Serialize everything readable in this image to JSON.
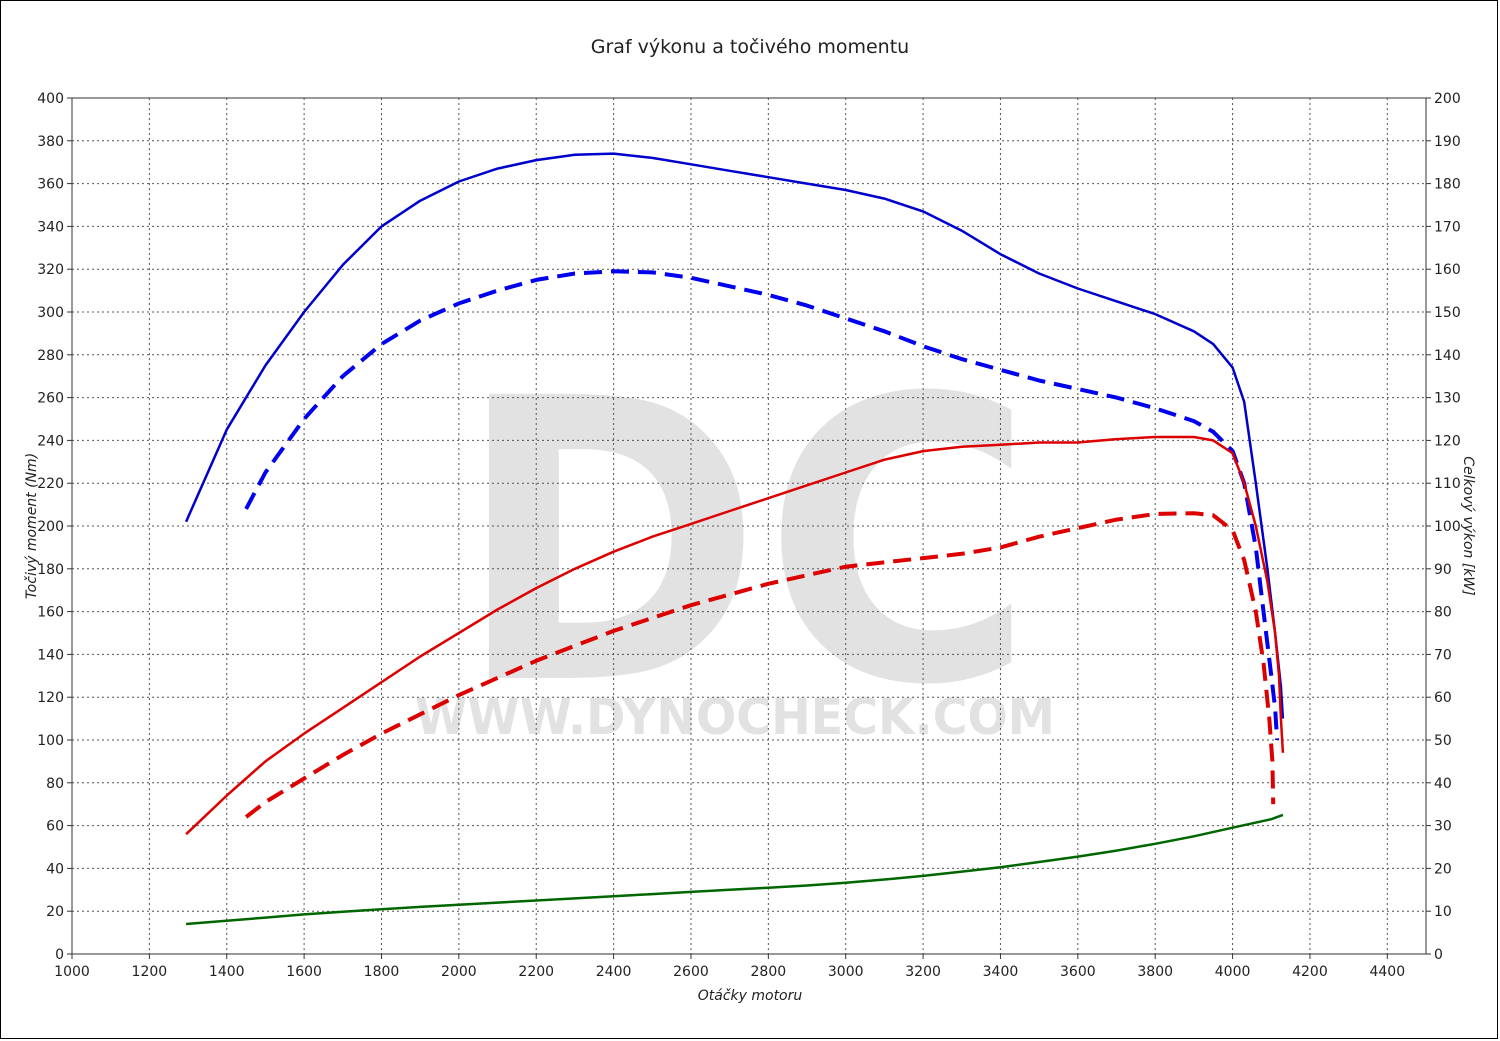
{
  "chart_data": {
    "type": "line",
    "title": "Graf výkonu a točivého momentu",
    "xlabel": "Otáčky motoru",
    "ylabel_left": "Točivý moment (Nm)",
    "ylabel_right": "Celkový výkon [kW]",
    "watermark": {
      "letters": "DC",
      "url": "WWW.DYNOCHECK.COM"
    },
    "xlim": [
      1000,
      4500
    ],
    "ylim_left": [
      0,
      400
    ],
    "ylim_right": [
      0,
      200
    ],
    "x_ticks": [
      1000,
      1200,
      1400,
      1600,
      1800,
      2000,
      2200,
      2400,
      2600,
      2800,
      3000,
      3200,
      3400,
      3600,
      3800,
      4000,
      4200,
      4400
    ],
    "y_left_ticks": [
      0,
      20,
      40,
      60,
      80,
      100,
      120,
      140,
      160,
      180,
      200,
      220,
      240,
      260,
      280,
      300,
      320,
      340,
      360,
      380,
      400
    ],
    "y_right_ticks": [
      0,
      10,
      20,
      30,
      40,
      50,
      60,
      70,
      80,
      90,
      100,
      110,
      120,
      130,
      140,
      150,
      160,
      170,
      180,
      190,
      200
    ],
    "grid": true,
    "series": [
      {
        "axis": "left",
        "color": "#0000cc",
        "dashed": false,
        "points": [
          [
            1295,
            202
          ],
          [
            1400,
            245
          ],
          [
            1500,
            275
          ],
          [
            1600,
            300
          ],
          [
            1700,
            322
          ],
          [
            1800,
            340
          ],
          [
            1900,
            352
          ],
          [
            2000,
            361
          ],
          [
            2100,
            367
          ],
          [
            2200,
            371
          ],
          [
            2300,
            373.5
          ],
          [
            2400,
            374
          ],
          [
            2500,
            372
          ],
          [
            2600,
            369
          ],
          [
            2700,
            366
          ],
          [
            2800,
            363
          ],
          [
            2900,
            360
          ],
          [
            3000,
            357
          ],
          [
            3100,
            353
          ],
          [
            3200,
            347
          ],
          [
            3300,
            338
          ],
          [
            3400,
            327
          ],
          [
            3500,
            318
          ],
          [
            3600,
            311
          ],
          [
            3700,
            305
          ],
          [
            3800,
            299
          ],
          [
            3900,
            291
          ],
          [
            3950,
            285
          ],
          [
            4000,
            274
          ],
          [
            4030,
            258
          ],
          [
            4060,
            220
          ],
          [
            4090,
            180
          ],
          [
            4110,
            150
          ],
          [
            4125,
            125
          ],
          [
            4130,
            110
          ]
        ]
      },
      {
        "axis": "left",
        "color": "#0000ee",
        "dashed": true,
        "points": [
          [
            1450,
            208
          ],
          [
            1500,
            225
          ],
          [
            1600,
            250
          ],
          [
            1700,
            270
          ],
          [
            1800,
            285
          ],
          [
            1900,
            296
          ],
          [
            2000,
            304
          ],
          [
            2100,
            310
          ],
          [
            2200,
            315
          ],
          [
            2300,
            318
          ],
          [
            2400,
            319
          ],
          [
            2500,
            318.5
          ],
          [
            2600,
            316
          ],
          [
            2700,
            312
          ],
          [
            2800,
            308
          ],
          [
            2900,
            303
          ],
          [
            3000,
            297
          ],
          [
            3100,
            291
          ],
          [
            3200,
            284
          ],
          [
            3300,
            278
          ],
          [
            3400,
            273
          ],
          [
            3500,
            268
          ],
          [
            3600,
            264
          ],
          [
            3700,
            260
          ],
          [
            3800,
            255
          ],
          [
            3900,
            249
          ],
          [
            3950,
            244
          ],
          [
            4000,
            235
          ],
          [
            4030,
            220
          ],
          [
            4060,
            190
          ],
          [
            4080,
            160
          ],
          [
            4100,
            130
          ],
          [
            4110,
            115
          ],
          [
            4115,
            100
          ]
        ]
      },
      {
        "axis": "right",
        "color": "#dd0000",
        "dashed": false,
        "points": [
          [
            1295,
            28
          ],
          [
            1400,
            37
          ],
          [
            1500,
            45
          ],
          [
            1600,
            51.5
          ],
          [
            1700,
            57.5
          ],
          [
            1800,
            63.5
          ],
          [
            1900,
            69.5
          ],
          [
            2000,
            75
          ],
          [
            2100,
            80.5
          ],
          [
            2200,
            85.5
          ],
          [
            2300,
            90
          ],
          [
            2400,
            94
          ],
          [
            2500,
            97.5
          ],
          [
            2600,
            100.5
          ],
          [
            2700,
            103.5
          ],
          [
            2800,
            106.5
          ],
          [
            2900,
            109.5
          ],
          [
            3000,
            112.5
          ],
          [
            3100,
            115.5
          ],
          [
            3200,
            117.5
          ],
          [
            3300,
            118.5
          ],
          [
            3400,
            119
          ],
          [
            3500,
            119.5
          ],
          [
            3600,
            119.5
          ],
          [
            3700,
            120.3
          ],
          [
            3800,
            120.8
          ],
          [
            3900,
            120.8
          ],
          [
            3950,
            120
          ],
          [
            4000,
            117
          ],
          [
            4030,
            110
          ],
          [
            4060,
            100
          ],
          [
            4090,
            87
          ],
          [
            4110,
            75
          ],
          [
            4120,
            65
          ],
          [
            4125,
            55
          ],
          [
            4130,
            47
          ]
        ]
      },
      {
        "axis": "right",
        "color": "#dd0000",
        "dashed": true,
        "points": [
          [
            1450,
            32
          ],
          [
            1500,
            35.5
          ],
          [
            1600,
            41
          ],
          [
            1700,
            46.5
          ],
          [
            1800,
            51.5
          ],
          [
            1900,
            56
          ],
          [
            2000,
            60.5
          ],
          [
            2100,
            64.5
          ],
          [
            2200,
            68.5
          ],
          [
            2300,
            72
          ],
          [
            2400,
            75.5
          ],
          [
            2500,
            78.5
          ],
          [
            2600,
            81.5
          ],
          [
            2700,
            84
          ],
          [
            2800,
            86.5
          ],
          [
            2900,
            88.5
          ],
          [
            3000,
            90.5
          ],
          [
            3100,
            91.5
          ],
          [
            3200,
            92.5
          ],
          [
            3300,
            93.5
          ],
          [
            3400,
            95
          ],
          [
            3500,
            97.5
          ],
          [
            3600,
            99.5
          ],
          [
            3700,
            101.5
          ],
          [
            3800,
            102.8
          ],
          [
            3900,
            103
          ],
          [
            3950,
            102.5
          ],
          [
            4000,
            99
          ],
          [
            4030,
            92
          ],
          [
            4060,
            80
          ],
          [
            4080,
            68
          ],
          [
            4095,
            55
          ],
          [
            4103,
            45
          ],
          [
            4105,
            35
          ]
        ]
      },
      {
        "axis": "left",
        "color": "#006600",
        "dashed": false,
        "points": [
          [
            1295,
            14
          ],
          [
            1400,
            15.5
          ],
          [
            1500,
            17
          ],
          [
            1600,
            18.5
          ],
          [
            1700,
            19.7
          ],
          [
            1800,
            20.9
          ],
          [
            1900,
            22
          ],
          [
            2000,
            23
          ],
          [
            2100,
            24
          ],
          [
            2200,
            25
          ],
          [
            2300,
            26
          ],
          [
            2400,
            27
          ],
          [
            2500,
            28
          ],
          [
            2600,
            29
          ],
          [
            2700,
            30
          ],
          [
            2800,
            31
          ],
          [
            2900,
            32
          ],
          [
            3000,
            33.3
          ],
          [
            3100,
            34.8
          ],
          [
            3200,
            36.5
          ],
          [
            3300,
            38.5
          ],
          [
            3400,
            40.5
          ],
          [
            3500,
            43
          ],
          [
            3600,
            45.5
          ],
          [
            3700,
            48.3
          ],
          [
            3800,
            51.5
          ],
          [
            3900,
            55
          ],
          [
            4000,
            59
          ],
          [
            4100,
            63
          ],
          [
            4130,
            65
          ]
        ]
      }
    ]
  }
}
